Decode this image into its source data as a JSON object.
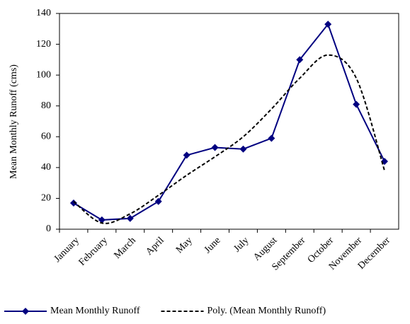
{
  "chart_data": {
    "type": "line",
    "y_label": "Mean Monthly Runoff (cms)",
    "categories": [
      "January",
      "February",
      "March",
      "April",
      "May",
      "June",
      "July",
      "August",
      "September",
      "October",
      "November",
      "December"
    ],
    "series": [
      {
        "name": "Mean Monthly Runoff",
        "color": "#000080",
        "style": "solid",
        "marker": "diamond",
        "values": [
          17,
          6,
          7,
          18,
          48,
          53,
          52,
          59,
          110,
          133,
          81,
          44
        ]
      },
      {
        "name": "Poly. (Mean Monthly Runoff)",
        "color": "#000000",
        "style": "dashed",
        "marker": "none",
        "values": [
          18,
          4,
          10,
          22,
          35,
          47,
          60,
          78,
          98,
          113,
          98,
          38
        ]
      }
    ],
    "ylim": [
      0,
      140
    ],
    "yticks": [
      0,
      20,
      40,
      60,
      80,
      100,
      120,
      140
    ],
    "legend": "bottom"
  }
}
